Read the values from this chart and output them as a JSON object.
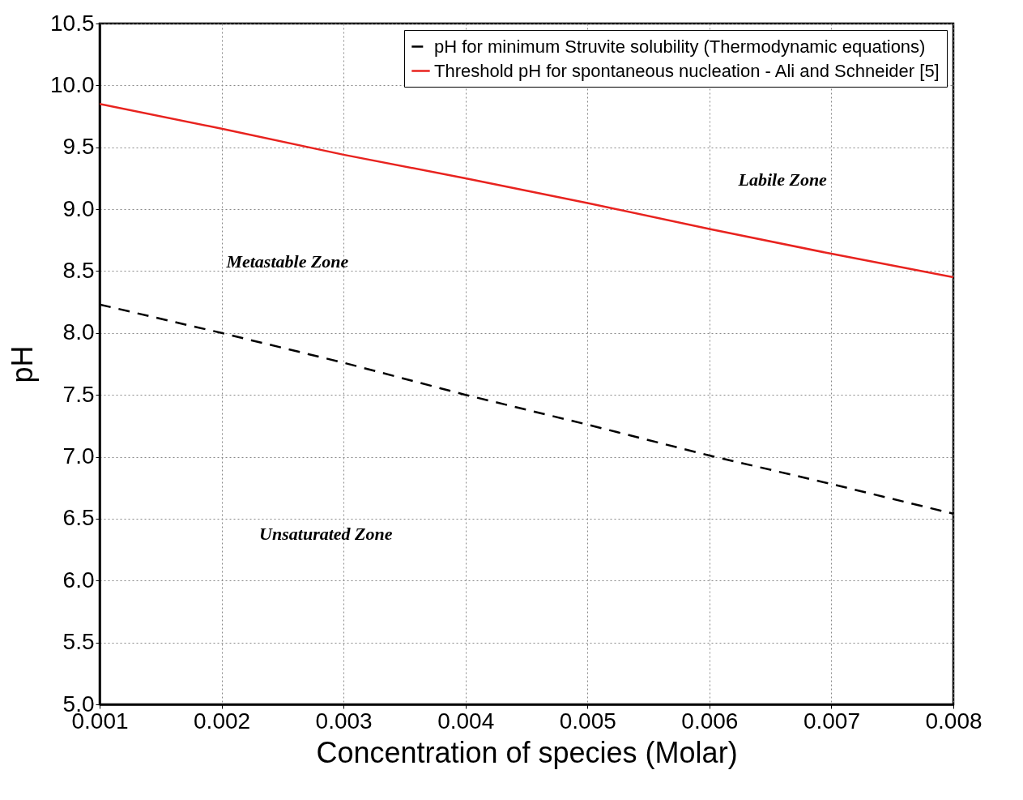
{
  "chart_data": {
    "type": "line",
    "xlabel": "Concentration of species (Molar)",
    "ylabel": "pH",
    "x": [
      0.001,
      0.002,
      0.003,
      0.004,
      0.005,
      0.006,
      0.007,
      0.008
    ],
    "series": [
      {
        "name": "pH for minimum Struvite solubility (Thermodynamic equations)",
        "color": "#000000",
        "line_style": "dashed",
        "values": [
          8.23,
          8.0,
          7.76,
          7.5,
          7.26,
          7.01,
          6.78,
          6.54
        ]
      },
      {
        "name": "Threshold pH for spontaneous nucleation - Ali and Schneider [5]",
        "color": "#e8231f",
        "line_style": "solid",
        "values": [
          9.85,
          9.65,
          9.44,
          9.25,
          9.05,
          8.84,
          8.64,
          8.45
        ]
      }
    ],
    "xlim": [
      0.001,
      0.008
    ],
    "xticks": [
      0.001,
      0.002,
      0.003,
      0.004,
      0.005,
      0.006,
      0.007,
      0.008
    ],
    "ylim": [
      5,
      10.5
    ],
    "yticks": [
      {
        "value": 5,
        "label": "5.0"
      },
      5.5,
      {
        "value": 6,
        "label": "6.0"
      },
      6.5,
      {
        "value": 7,
        "label": "7.0"
      },
      7.5,
      {
        "value": 8,
        "label": "8.0"
      },
      8.5,
      {
        "value": 9,
        "label": "9.0"
      },
      9.5,
      {
        "value": 10,
        "label": "10.0"
      },
      10.5
    ],
    "grid": true,
    "legend": "top right",
    "marker": "none",
    "annotations": [
      "Labile Zone",
      "Metastable Zone",
      "Unsaturated Zone"
    ]
  }
}
